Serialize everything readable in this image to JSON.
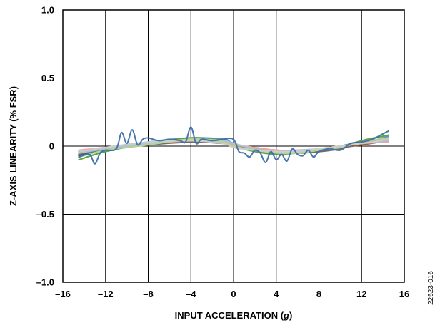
{
  "chart_data": {
    "type": "line",
    "xlabel_prefix": "INPUT ACCELERATION (",
    "xlabel_unit": "g",
    "xlabel_suffix": ")",
    "ylabel": "Z-AXIS LINEARITY (% FSR)",
    "xlim": [
      -16,
      16
    ],
    "ylim": [
      -1.0,
      1.0
    ],
    "xticks": [
      -16,
      -12,
      -8,
      -4,
      0,
      4,
      8,
      12,
      16
    ],
    "xtick_labels": [
      "–16",
      "–12",
      "–8",
      "–4",
      "0",
      "4",
      "8",
      "12",
      "16"
    ],
    "yticks": [
      -1.0,
      -0.5,
      0,
      0.5,
      1.0
    ],
    "ytick_labels": [
      "–1.0",
      "–0.5",
      "0",
      "0.5",
      "1.0"
    ],
    "grid": true,
    "figure_id": "22623-016",
    "series": [
      {
        "color": "#3c6fa8",
        "x": [
          -14.5,
          -13.5,
          -13,
          -12.5,
          -12,
          -11,
          -10.5,
          -10,
          -9.5,
          -9,
          -8.5,
          -8,
          -7,
          -6,
          -5,
          -4.5,
          -4,
          -3.5,
          -3,
          -2,
          -1,
          0,
          0.5,
          1,
          1.5,
          2,
          2.5,
          3,
          3.5,
          4,
          4.5,
          5,
          5.5,
          6,
          6.5,
          7,
          7.5,
          8,
          9,
          10,
          11,
          12,
          13,
          14,
          14.5
        ],
        "y": [
          -0.08,
          -0.06,
          -0.13,
          -0.05,
          -0.03,
          -0.02,
          0.1,
          0.02,
          0.12,
          0.01,
          0.05,
          0.06,
          0.04,
          0.05,
          0.04,
          0.03,
          0.14,
          0.02,
          0.05,
          0.04,
          0.05,
          0.05,
          -0.04,
          -0.05,
          -0.08,
          -0.03,
          -0.05,
          -0.12,
          -0.04,
          -0.1,
          -0.06,
          -0.11,
          -0.02,
          -0.06,
          -0.07,
          -0.03,
          -0.08,
          -0.04,
          -0.02,
          -0.03,
          0.02,
          0.03,
          0.05,
          0.09,
          0.11
        ]
      },
      {
        "color": "#d97b3a",
        "x": [
          -14.5,
          -12,
          -8,
          -4,
          -1,
          0,
          2,
          4,
          6,
          8,
          10,
          12,
          14.5
        ],
        "y": [
          -0.05,
          -0.02,
          0.02,
          0.05,
          0.04,
          0.01,
          -0.03,
          -0.05,
          -0.04,
          -0.03,
          -0.01,
          0.02,
          0.03
        ]
      },
      {
        "color": "#9a9a9a",
        "x": [
          -14.5,
          -12,
          -8,
          -4,
          -1,
          0,
          2,
          4,
          6,
          8,
          10,
          12,
          14.5
        ],
        "y": [
          -0.04,
          -0.01,
          0.03,
          0.04,
          0.03,
          0.0,
          -0.02,
          -0.04,
          -0.05,
          -0.03,
          -0.01,
          0.03,
          0.05
        ]
      },
      {
        "color": "#e8b92a",
        "x": [
          -14.5,
          -12,
          -8,
          -4,
          -1,
          0,
          2,
          4,
          6,
          8,
          10,
          12,
          14.5
        ],
        "y": [
          -0.06,
          -0.03,
          0.02,
          0.05,
          0.05,
          0.02,
          -0.02,
          -0.04,
          -0.04,
          -0.02,
          0.0,
          0.03,
          0.06
        ]
      },
      {
        "color": "#5a8fcf",
        "x": [
          -14.5,
          -12,
          -8,
          -4,
          -1,
          0,
          2,
          4,
          6,
          8,
          10,
          12,
          14.5
        ],
        "y": [
          -0.05,
          -0.02,
          0.03,
          0.06,
          0.05,
          0.02,
          -0.03,
          -0.05,
          -0.05,
          -0.03,
          -0.01,
          0.02,
          0.07
        ]
      },
      {
        "color": "#5c9e3e",
        "x": [
          -14.5,
          -12,
          -8,
          -4,
          -1,
          0,
          2,
          4,
          6,
          8,
          10,
          12,
          14.5
        ],
        "y": [
          -0.1,
          -0.04,
          0.02,
          0.06,
          0.04,
          0.0,
          -0.04,
          -0.06,
          -0.05,
          -0.04,
          -0.01,
          0.04,
          0.08
        ]
      },
      {
        "color": "#2c4e7e",
        "x": [
          -14.5,
          -12,
          -8,
          -4,
          -1,
          0,
          2,
          4,
          6,
          8,
          10,
          12,
          14.5
        ],
        "y": [
          -0.07,
          -0.03,
          0.01,
          0.04,
          0.04,
          0.01,
          -0.03,
          -0.05,
          -0.04,
          -0.03,
          0.0,
          0.03,
          0.05
        ]
      },
      {
        "color": "#a5532a",
        "x": [
          -14.5,
          -12,
          -8,
          -4,
          -1,
          0,
          2,
          4,
          6,
          8,
          10,
          12,
          14.5
        ],
        "y": [
          -0.04,
          -0.02,
          0.02,
          0.03,
          0.03,
          0.0,
          -0.02,
          -0.03,
          -0.04,
          -0.02,
          -0.01,
          0.01,
          0.04
        ]
      },
      {
        "color": "#6b6b6b",
        "x": [
          -14.5,
          -12,
          -8,
          -4,
          -1,
          0,
          2,
          4,
          6,
          8,
          10,
          12,
          14.5
        ],
        "y": [
          -0.06,
          -0.02,
          0.01,
          0.03,
          0.02,
          0.0,
          -0.03,
          -0.04,
          -0.05,
          -0.04,
          -0.02,
          0.02,
          0.04
        ]
      },
      {
        "color": "#f3a6a0",
        "x": [
          -14.5,
          -12,
          -8,
          -4,
          -1,
          0,
          2,
          4,
          6,
          8,
          10,
          12,
          14.5
        ],
        "y": [
          -0.03,
          -0.01,
          0.02,
          0.04,
          0.04,
          0.01,
          -0.01,
          -0.03,
          -0.03,
          -0.02,
          0.0,
          0.02,
          0.03
        ]
      },
      {
        "color": "#a9c4e4",
        "x": [
          -14.5,
          -12,
          -8,
          -4,
          -1,
          0,
          2,
          4,
          6,
          8,
          10,
          12,
          14.5
        ],
        "y": [
          -0.05,
          -0.02,
          0.02,
          0.05,
          0.04,
          0.02,
          -0.02,
          -0.04,
          -0.03,
          -0.02,
          0.0,
          0.02,
          0.04
        ]
      },
      {
        "color": "#b8d98f",
        "x": [
          -14.5,
          -12,
          -8,
          -4,
          -1,
          0,
          2,
          4,
          6,
          8,
          10,
          12,
          14.5
        ],
        "y": [
          -0.08,
          -0.03,
          0.01,
          0.05,
          0.03,
          0.0,
          -0.03,
          -0.05,
          -0.05,
          -0.03,
          -0.01,
          0.03,
          0.06
        ]
      },
      {
        "color": "#cfcfcf",
        "x": [
          -14.5,
          -12,
          -8,
          -4,
          -1,
          0,
          2,
          4,
          6,
          8,
          10,
          12,
          14.5
        ],
        "y": [
          -0.04,
          -0.01,
          0.03,
          0.04,
          0.02,
          -0.01,
          -0.03,
          -0.04,
          -0.04,
          -0.02,
          0.0,
          0.02,
          0.05
        ]
      }
    ]
  }
}
